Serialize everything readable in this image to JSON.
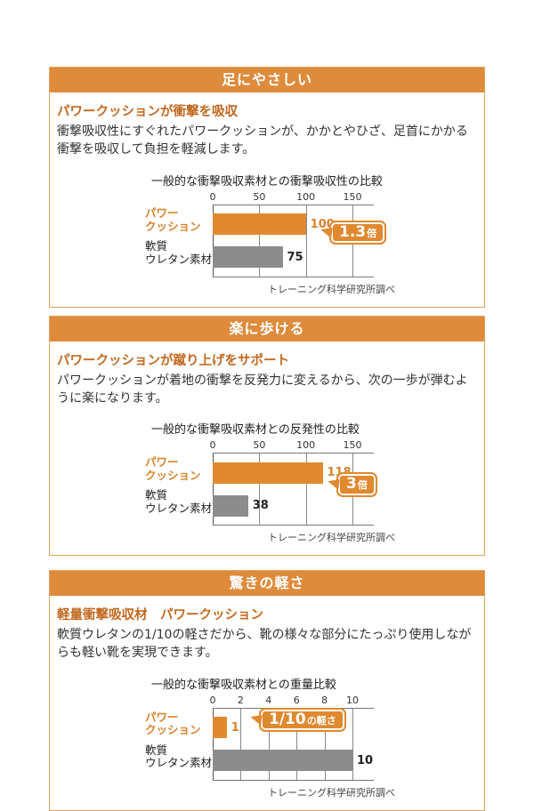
{
  "colors": {
    "header_bg": "#de8b3c",
    "panel_border": "#e2a35c",
    "subheading_text": "#c2691f",
    "body_text": "#333333",
    "bar_orange": "#e0892f",
    "bar_gray": "#8c8c8c",
    "badge_bg": "#e0892f",
    "badge_text": "#ffffff",
    "gridline": "#888888"
  },
  "sections": [
    {
      "id": "cushioning",
      "header": "足にやさしい",
      "subheading": "パワークッションが衝撃を吸収",
      "body": "衝撃吸収性にすぐれたパワークッションが、かかとやひざ、足首にかかる衝撃を吸収して負担を軽減します。",
      "chart": {
        "title": "一般的な衝撃吸収素材との衝撃吸収性の比較",
        "ticks": [
          0,
          50,
          100,
          150
        ],
        "bars": [
          {
            "label_lines": [
              "パワー",
              "クッション"
            ],
            "value": 100,
            "emphasis": true
          },
          {
            "label_lines": [
              "軟質",
              "ウレタン素材"
            ],
            "value": 75,
            "emphasis": false
          }
        ],
        "badge": {
          "big": "1.3",
          "small": "倍"
        },
        "source": "トレーニング科学研究所調べ"
      }
    },
    {
      "id": "rebound",
      "header": "楽に歩ける",
      "subheading": "パワークッションが蹴り上げをサポート",
      "body": "パワークッションが着地の衝撃を反発力に変えるから、次の一歩が弾むように楽になります。",
      "chart": {
        "title": "一般的な衝撃吸収素材との反発性の比較",
        "ticks": [
          0,
          50,
          100,
          150
        ],
        "bars": [
          {
            "label_lines": [
              "パワー",
              "クッション"
            ],
            "value": 118,
            "emphasis": true
          },
          {
            "label_lines": [
              "軟質",
              "ウレタン素材"
            ],
            "value": 38,
            "emphasis": false
          }
        ],
        "badge": {
          "big": "3",
          "small": "倍"
        },
        "source": "トレーニング科学研究所調べ"
      }
    },
    {
      "id": "lightweight",
      "header": "驚きの軽さ",
      "subheading": "軽量衝撃吸収材　パワークッション",
      "body": "軟質ウレタンの1/10の軽さだから、靴の様々な部分にたっぷり使用しながらも軽い靴を実現できます。",
      "chart": {
        "title": "一般的な衝撃吸収素材との重量比較",
        "ticks": [
          0,
          2,
          4,
          6,
          8,
          10
        ],
        "bars": [
          {
            "label_lines": [
              "パワー",
              "クッション"
            ],
            "value": 1,
            "emphasis": true
          },
          {
            "label_lines": [
              "軟質",
              "ウレタン素材"
            ],
            "value": 10,
            "emphasis": false
          }
        ],
        "badge": {
          "big": "1/10",
          "small": "の軽さ"
        },
        "source": "トレーニング科学研究所調べ"
      }
    }
  ],
  "chart_data": [
    {
      "type": "bar",
      "orientation": "horizontal",
      "title": "一般的な衝撃吸収素材との衝撃吸収性の比較",
      "categories": [
        "パワークッション",
        "軟質ウレタン素材"
      ],
      "values": [
        100,
        75
      ],
      "xlim": [
        0,
        150
      ],
      "xticks": [
        0,
        50,
        100,
        150
      ],
      "bar_colors": [
        "#e0892f",
        "#8c8c8c"
      ],
      "annotation": "1.3倍",
      "source": "トレーニング科学研究所調べ",
      "grid": true,
      "legend": false
    },
    {
      "type": "bar",
      "orientation": "horizontal",
      "title": "一般的な衝撃吸収素材との反発性の比較",
      "categories": [
        "パワークッション",
        "軟質ウレタン素材"
      ],
      "values": [
        118,
        38
      ],
      "xlim": [
        0,
        150
      ],
      "xticks": [
        0,
        50,
        100,
        150
      ],
      "bar_colors": [
        "#e0892f",
        "#8c8c8c"
      ],
      "annotation": "3倍",
      "source": "トレーニング科学研究所調べ",
      "grid": true,
      "legend": false
    },
    {
      "type": "bar",
      "orientation": "horizontal",
      "title": "一般的な衝撃吸収素材との重量比較",
      "categories": [
        "パワークッション",
        "軟質ウレタン素材"
      ],
      "values": [
        1,
        10
      ],
      "xlim": [
        0,
        10
      ],
      "xticks": [
        0,
        2,
        4,
        6,
        8,
        10
      ],
      "bar_colors": [
        "#e0892f",
        "#8c8c8c"
      ],
      "annotation": "1/10の軽さ",
      "source": "トレーニング科学研究所調べ",
      "grid": true,
      "legend": false
    }
  ]
}
